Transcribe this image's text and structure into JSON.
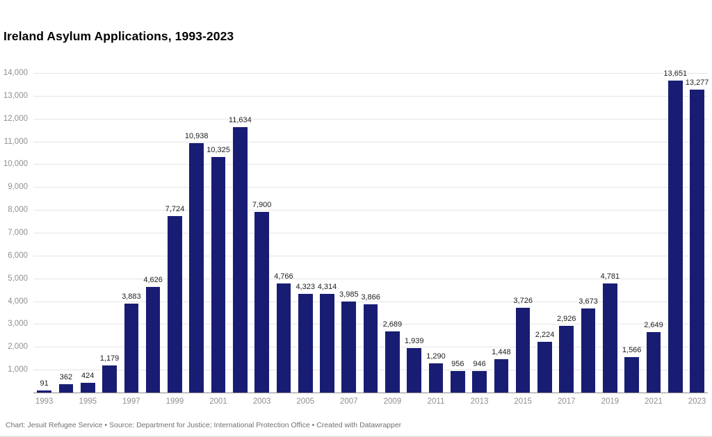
{
  "title": "Ireland Asylum Applications, 1993-2023",
  "footer": "Chart: Jesuit Refugee Service • Source: Department for Justice; International Protection Office • Created with Datawrapper",
  "chart_data": {
    "type": "bar",
    "title": "Ireland Asylum Applications, 1993-2023",
    "xlabel": "",
    "ylabel": "",
    "ylim": [
      0,
      14000
    ],
    "ytick_step": 1000,
    "grid": true,
    "legend": false,
    "categories": [
      "1993",
      "1994",
      "1995",
      "1996",
      "1997",
      "1998",
      "1999",
      "2000",
      "2001",
      "2002",
      "2003",
      "2004",
      "2005",
      "2006",
      "2007",
      "2008",
      "2009",
      "2010",
      "2011",
      "2012",
      "2013",
      "2014",
      "2015",
      "2016",
      "2017",
      "2018",
      "2019",
      "2020",
      "2021",
      "2022",
      "2023"
    ],
    "values": [
      91,
      362,
      424,
      1179,
      3883,
      4626,
      7724,
      10938,
      10325,
      11634,
      7900,
      4766,
      4323,
      4314,
      3985,
      3866,
      2689,
      1939,
      1290,
      956,
      946,
      1448,
      3726,
      2224,
      2926,
      3673,
      4781,
      1566,
      2649,
      13651,
      13277
    ],
    "x_tick_years": [
      "1993",
      "1995",
      "1997",
      "1999",
      "2001",
      "2003",
      "2005",
      "2007",
      "2009",
      "2011",
      "2013",
      "2015",
      "2017",
      "2019",
      "2021",
      "2023"
    ],
    "bar_color": "#181d73",
    "grid_color": "#e4e4e4",
    "axis_line_color": "#8c8c8c",
    "tick_label_color": "#8f8f8f",
    "value_label_color": "#1d1d1d"
  }
}
